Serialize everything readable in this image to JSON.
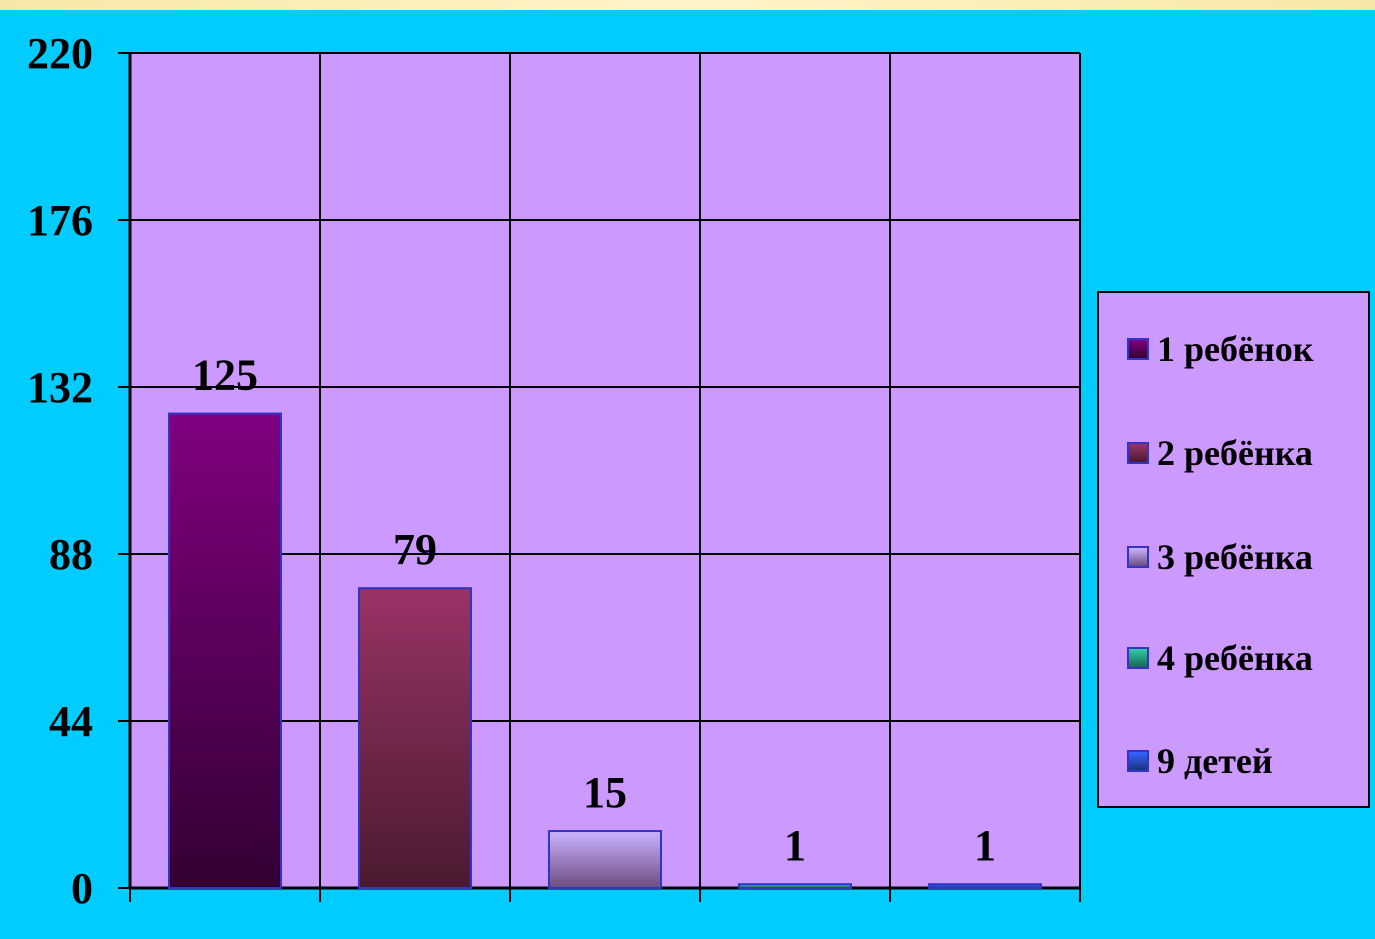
{
  "chart_data": {
    "type": "bar",
    "categories": [
      "1 ребёнок",
      "2 ребёнка",
      "3 ребёнка",
      "4 ребёнка",
      "9 детей"
    ],
    "series": [
      {
        "name": "1 ребёнок",
        "value": 125,
        "color_top": "#800080",
        "color_bottom": "#330033"
      },
      {
        "name": "2 ребёнка",
        "value": 79,
        "color_top": "#993366",
        "color_bottom": "#4a1a30"
      },
      {
        "name": "3 ребёнка",
        "value": 15,
        "color_top": "#ccb3ff",
        "color_bottom": "#6b4d80"
      },
      {
        "name": "4 ребёнка",
        "value": 1,
        "color_top": "#33ccaa",
        "color_bottom": "#1a6650"
      },
      {
        "name": "9 детей",
        "value": 1,
        "color_top": "#3366ff",
        "color_bottom": "#1a3380"
      }
    ],
    "data_labels": [
      "125",
      "79",
      "15",
      "1",
      "1"
    ],
    "y_ticks": [
      "0",
      "44",
      "88",
      "132",
      "176",
      "220"
    ],
    "ylim": [
      0,
      220
    ],
    "grid": true,
    "legend_position": "right",
    "colors": {
      "background": "#00ccff",
      "plot_area": "#cc99ff",
      "gridline": "#000000",
      "bar_border": "#3333cc"
    }
  }
}
